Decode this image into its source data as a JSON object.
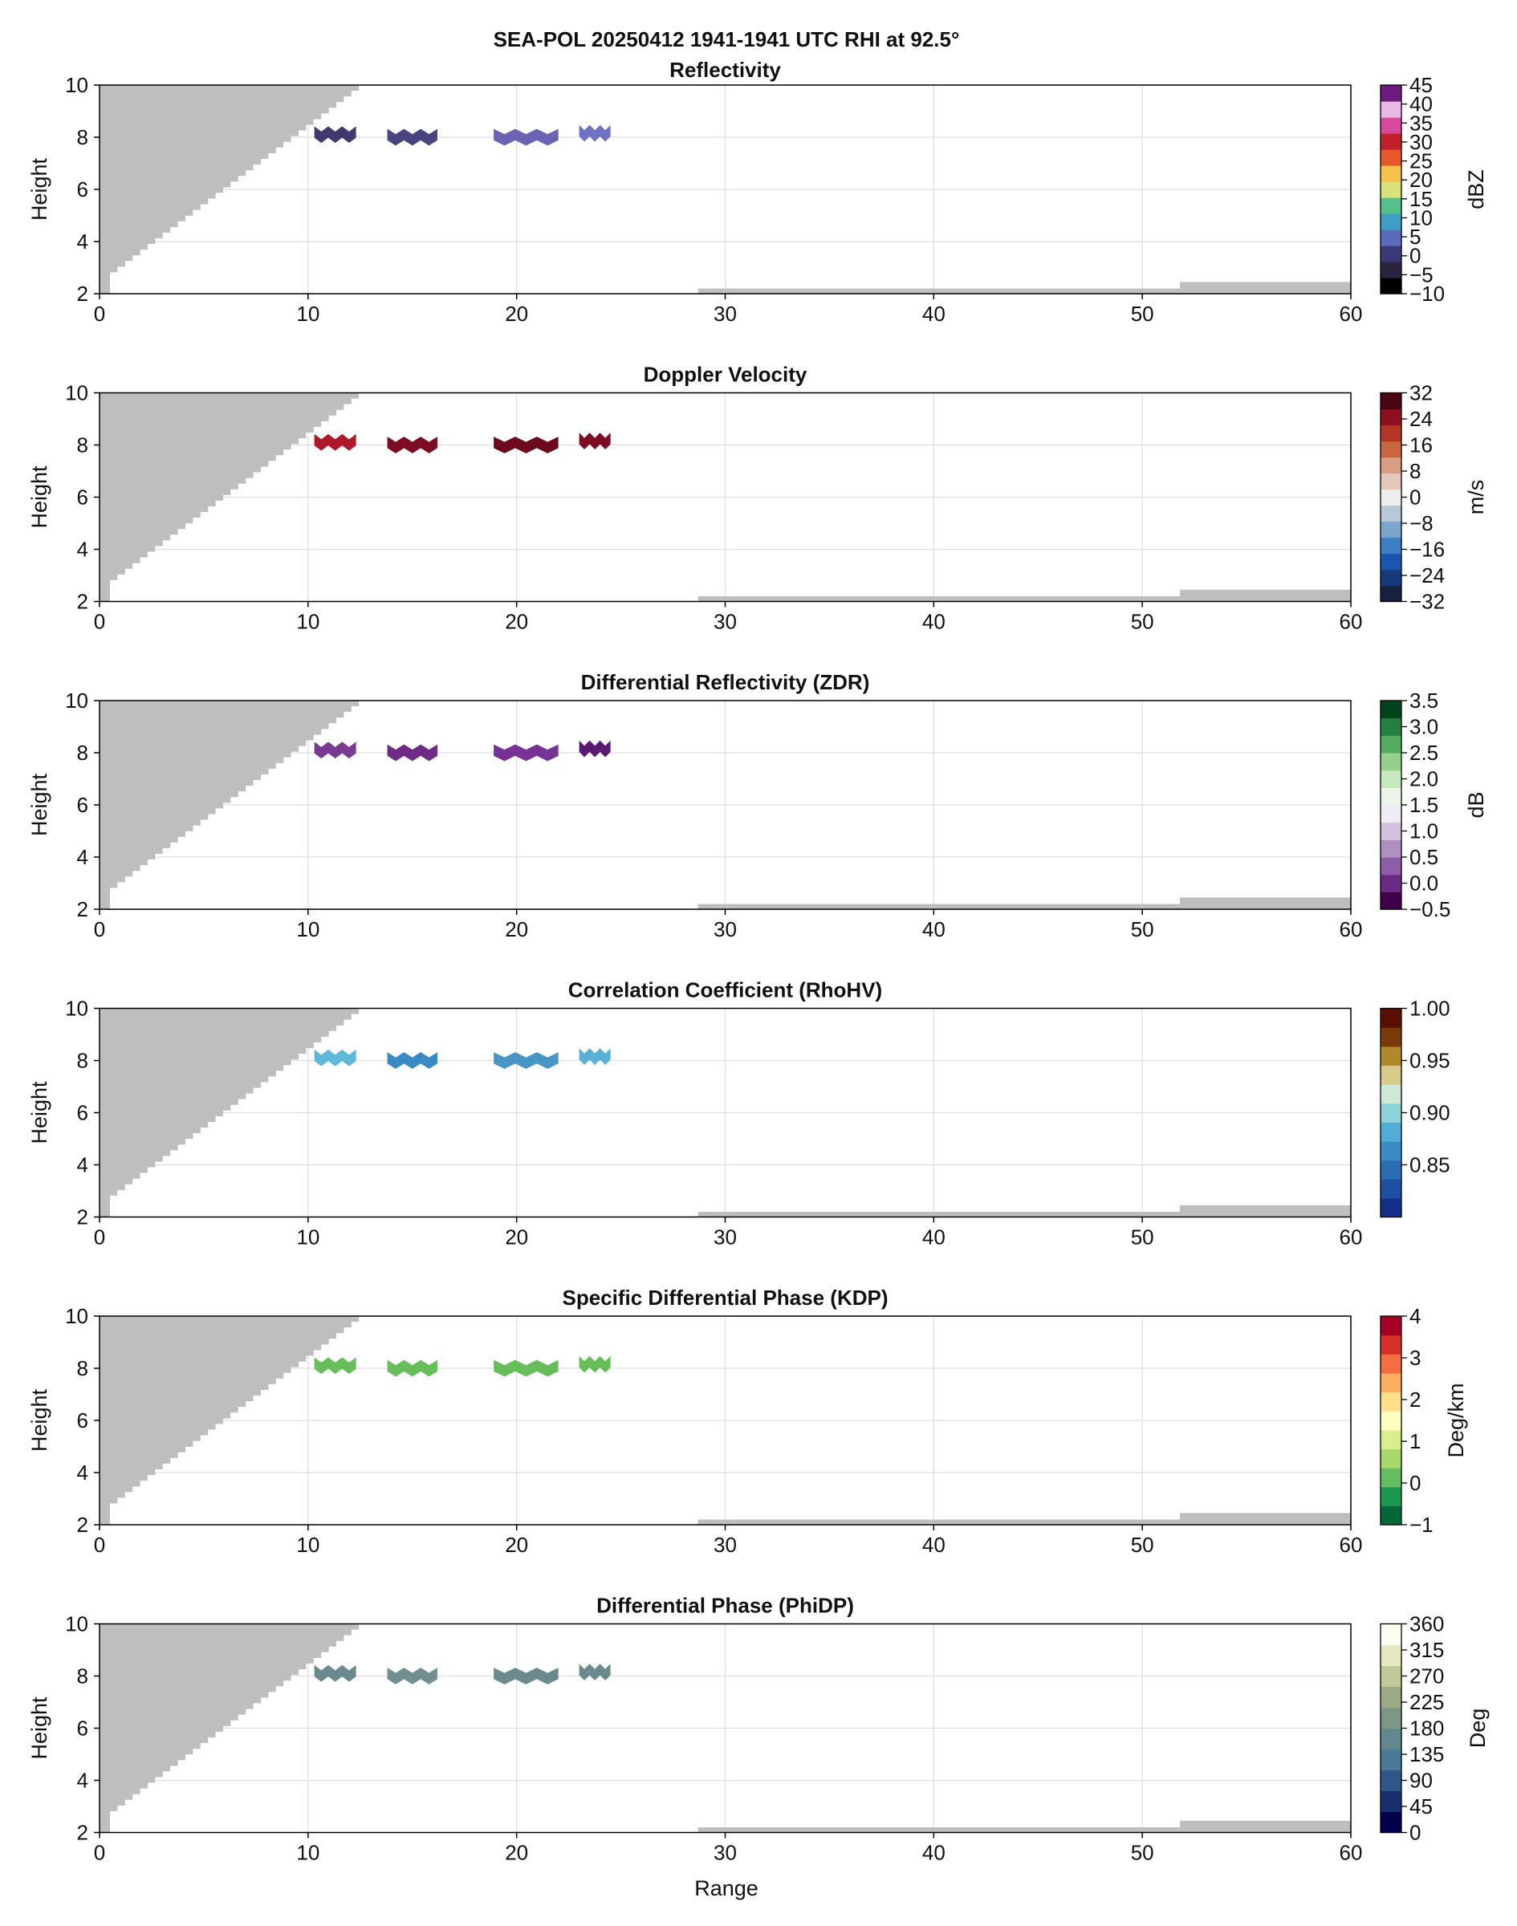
{
  "figure": {
    "suptitle": "SEA-POL 20250412 1941-1941 UTC RHI at 92.5°",
    "xlabel": "Range"
  },
  "chart_data": [
    {
      "type": "heatmap",
      "title": "Reflectivity",
      "ylabel": "Height",
      "xlim": [
        0,
        60
      ],
      "ylim": [
        2,
        10
      ],
      "xticks": [
        0,
        10,
        20,
        30,
        40,
        50,
        60
      ],
      "yticks": [
        2,
        4,
        6,
        8,
        10
      ],
      "grid": true,
      "colorbar": {
        "label": "dBZ",
        "ticks": [
          "−10",
          "−5",
          "0",
          "5",
          "10",
          "15",
          "20",
          "25",
          "30",
          "35",
          "40",
          "45"
        ],
        "colors": [
          "#000000",
          "#2b2340",
          "#3a3a78",
          "#5b6bbb",
          "#3f9ec4",
          "#55c08a",
          "#d8e27a",
          "#f5c24a",
          "#e6582a",
          "#c21f2b",
          "#d74a9b",
          "#e9b8e4",
          "#6c1a7d"
        ]
      },
      "echoes": [
        {
          "x_start": 10.3,
          "x_end": 12.3,
          "height": 8.1,
          "color": "#3e3a6e"
        },
        {
          "x_start": 13.8,
          "x_end": 16.2,
          "height": 8.0,
          "color": "#47447f"
        },
        {
          "x_start": 18.9,
          "x_end": 22.0,
          "height": 8.0,
          "color": "#6a62b3"
        },
        {
          "x_start": 23.0,
          "x_end": 24.5,
          "height": 8.15,
          "color": "#6f72c4"
        }
      ]
    },
    {
      "type": "heatmap",
      "title": "Doppler Velocity",
      "ylabel": "Height",
      "xlim": [
        0,
        60
      ],
      "ylim": [
        2,
        10
      ],
      "xticks": [
        0,
        10,
        20,
        30,
        40,
        50,
        60
      ],
      "yticks": [
        2,
        4,
        6,
        8,
        10
      ],
      "grid": true,
      "colorbar": {
        "label": "m/s",
        "ticks": [
          "−32",
          "−24",
          "−16",
          "−8",
          "0",
          "8",
          "16",
          "24",
          "32"
        ],
        "colors": [
          "#172040",
          "#193a7a",
          "#1a56b0",
          "#3d7fc4",
          "#7aa6cc",
          "#b7c9d6",
          "#eeeeee",
          "#e6c7bb",
          "#d99c84",
          "#c8663f",
          "#b33526",
          "#8e1020",
          "#4a0412"
        ]
      },
      "echoes": [
        {
          "x_start": 10.3,
          "x_end": 12.3,
          "height": 8.1,
          "color": "#b0172a"
        },
        {
          "x_start": 13.8,
          "x_end": 16.2,
          "height": 8.0,
          "color": "#7d0c22"
        },
        {
          "x_start": 18.9,
          "x_end": 22.0,
          "height": 8.0,
          "color": "#6e0a1e"
        },
        {
          "x_start": 23.0,
          "x_end": 24.5,
          "height": 8.15,
          "color": "#7d0c22"
        }
      ]
    },
    {
      "type": "heatmap",
      "title": "Differential Reflectivity (ZDR)",
      "ylabel": "Height",
      "xlim": [
        0,
        60
      ],
      "ylim": [
        2,
        10
      ],
      "xticks": [
        0,
        10,
        20,
        30,
        40,
        50,
        60
      ],
      "yticks": [
        2,
        4,
        6,
        8,
        10
      ],
      "grid": true,
      "colorbar": {
        "label": "dB",
        "ticks": [
          "−0.5",
          "0.0",
          "0.5",
          "1.0",
          "1.5",
          "2.0",
          "2.5",
          "3.0",
          "3.5"
        ],
        "colors": [
          "#40004b",
          "#6a2a83",
          "#8d5da7",
          "#b08fc2",
          "#d5c0dd",
          "#f1ebf3",
          "#ebf5e9",
          "#c6e9c0",
          "#93d18c",
          "#55ad61",
          "#238040",
          "#00441b"
        ]
      },
      "echoes": [
        {
          "x_start": 10.3,
          "x_end": 12.3,
          "height": 8.1,
          "color": "#7a3a92"
        },
        {
          "x_start": 13.8,
          "x_end": 16.2,
          "height": 8.0,
          "color": "#6e2a86"
        },
        {
          "x_start": 18.9,
          "x_end": 22.0,
          "height": 8.0,
          "color": "#763395"
        },
        {
          "x_start": 23.0,
          "x_end": 24.5,
          "height": 8.15,
          "color": "#5a1a70"
        }
      ]
    },
    {
      "type": "heatmap",
      "title": "Correlation Coefficient (RhoHV)",
      "ylabel": "Height",
      "xlim": [
        0,
        60
      ],
      "ylim": [
        2,
        10
      ],
      "xticks": [
        0,
        10,
        20,
        30,
        40,
        50,
        60
      ],
      "yticks": [
        2,
        4,
        6,
        8,
        10
      ],
      "ytick_values": [
        2,
        4,
        6,
        8,
        10
      ],
      "grid": true,
      "colorbar": {
        "label": "",
        "ticks": [
          "0.85",
          "0.90",
          "0.95",
          "1.00"
        ],
        "tick_values": [
          0.85,
          0.9,
          0.95,
          1.0
        ],
        "range": [
          0.8,
          1.0
        ],
        "colors": [
          "#132e8c",
          "#1f4fa3",
          "#2a6db3",
          "#3b8cc4",
          "#52aed6",
          "#8fd3da",
          "#cfe9d8",
          "#d9c98a",
          "#b08a2a",
          "#7a3a0a",
          "#5a0e04"
        ]
      },
      "echoes": [
        {
          "x_start": 10.3,
          "x_end": 12.3,
          "height": 8.1,
          "color": "#5fb8da"
        },
        {
          "x_start": 13.8,
          "x_end": 16.2,
          "height": 8.0,
          "color": "#3a8ac6"
        },
        {
          "x_start": 18.9,
          "x_end": 22.0,
          "height": 8.0,
          "color": "#4796c6"
        },
        {
          "x_start": 23.0,
          "x_end": 24.5,
          "height": 8.15,
          "color": "#58b0d6"
        }
      ]
    },
    {
      "type": "heatmap",
      "title": "Specific Differential Phase (KDP)",
      "ylabel": "Height",
      "xlim": [
        0,
        60
      ],
      "ylim": [
        2,
        10
      ],
      "xticks": [
        0,
        10,
        20,
        30,
        40,
        50,
        60
      ],
      "yticks": [
        2,
        4,
        6,
        8,
        10
      ],
      "grid": true,
      "colorbar": {
        "label": "Deg/km",
        "ticks": [
          "−1",
          "0",
          "1",
          "2",
          "3",
          "4"
        ],
        "colors": [
          "#006837",
          "#1a9850",
          "#66bd63",
          "#a6d96a",
          "#d9ef8b",
          "#ffffbf",
          "#fee08b",
          "#fdae61",
          "#f46d43",
          "#d73027",
          "#a50026"
        ]
      },
      "echoes": [
        {
          "x_start": 10.3,
          "x_end": 12.3,
          "height": 8.1,
          "color": "#66bd5a"
        },
        {
          "x_start": 13.8,
          "x_end": 16.2,
          "height": 8.0,
          "color": "#66bd5a"
        },
        {
          "x_start": 18.9,
          "x_end": 22.0,
          "height": 8.0,
          "color": "#66bd5a"
        },
        {
          "x_start": 23.0,
          "x_end": 24.5,
          "height": 8.15,
          "color": "#66bd5a"
        }
      ]
    },
    {
      "type": "heatmap",
      "title": "Differential Phase (PhiDP)",
      "ylabel": "Height",
      "xlim": [
        0,
        60
      ],
      "ylim": [
        2,
        10
      ],
      "xticks": [
        0,
        10,
        20,
        30,
        40,
        50,
        60
      ],
      "yticks": [
        2,
        4,
        6,
        8,
        10
      ],
      "grid": true,
      "colorbar": {
        "label": "Deg",
        "ticks": [
          "0",
          "45",
          "90",
          "135",
          "180",
          "225",
          "270",
          "315",
          "360"
        ],
        "colors": [
          "#00004c",
          "#1a2f6e",
          "#2e5688",
          "#487a96",
          "#62878e",
          "#7d9786",
          "#9aaa84",
          "#c3c89a",
          "#e6e6c2",
          "#fdfdf2"
        ]
      },
      "echoes": [
        {
          "x_start": 10.3,
          "x_end": 12.3,
          "height": 8.1,
          "color": "#6b8a8e"
        },
        {
          "x_start": 13.8,
          "x_end": 16.2,
          "height": 8.0,
          "color": "#718f90"
        },
        {
          "x_start": 18.9,
          "x_end": 22.0,
          "height": 8.0,
          "color": "#6b8a8e"
        },
        {
          "x_start": 23.0,
          "x_end": 24.5,
          "height": 8.15,
          "color": "#6b8a8e"
        }
      ]
    }
  ],
  "mask": {
    "color": "#bebebe",
    "blocked_region_top_range": 12.8,
    "ground_strips": [
      {
        "x_start": 28.7,
        "x_end": 51.8,
        "top": 2.2
      },
      {
        "x_start": 51.8,
        "x_end": 60.0,
        "top": 2.45
      }
    ]
  }
}
